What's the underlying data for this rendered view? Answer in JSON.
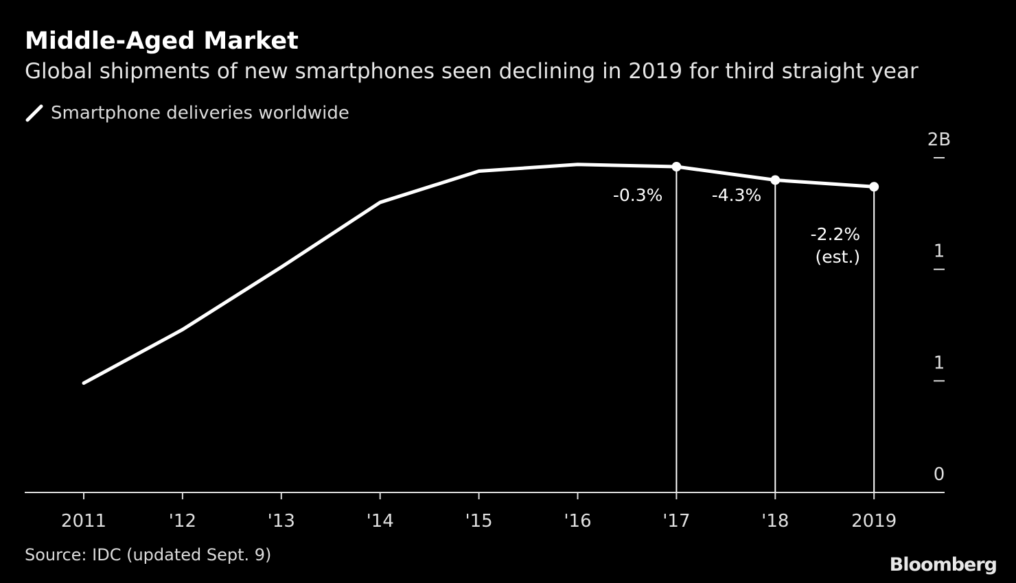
{
  "title": "Middle-Aged Market",
  "subtitle": "Global shipments of new smartphones seen declining in 2019 for third straight year",
  "source": "Source: IDC (updated Sept. 9)",
  "logo": "Bloomberg",
  "colors": {
    "background": "#000000",
    "line": "#ffffff"
  },
  "chart_data": {
    "type": "line",
    "legend": "top-left",
    "grid": false,
    "x": [
      2011,
      2012,
      2013,
      2014,
      2015,
      2016,
      2017,
      2018,
      2019
    ],
    "xtick_labels": [
      "2011",
      "'12",
      "'13",
      "'14",
      "'15",
      "'16",
      "'17",
      "'18",
      "2019"
    ],
    "series": [
      {
        "name": "Smartphone deliveries worldwide",
        "unit": "billion units",
        "values": [
          0.49,
          0.73,
          1.01,
          1.3,
          1.44,
          1.47,
          1.46,
          1.4,
          1.37
        ]
      }
    ],
    "ylim": [
      0,
      1.5
    ],
    "yticks": [
      0,
      0.5,
      1.0,
      1.5
    ],
    "ytick_labels": [
      "0",
      "1",
      "1",
      "2B"
    ],
    "annotations": [
      {
        "x": 2017,
        "lines": [
          "-0.3%"
        ]
      },
      {
        "x": 2018,
        "lines": [
          "-4.3%"
        ]
      },
      {
        "x": 2019,
        "lines": [
          "-2.2%",
          "(est.)"
        ]
      }
    ]
  }
}
